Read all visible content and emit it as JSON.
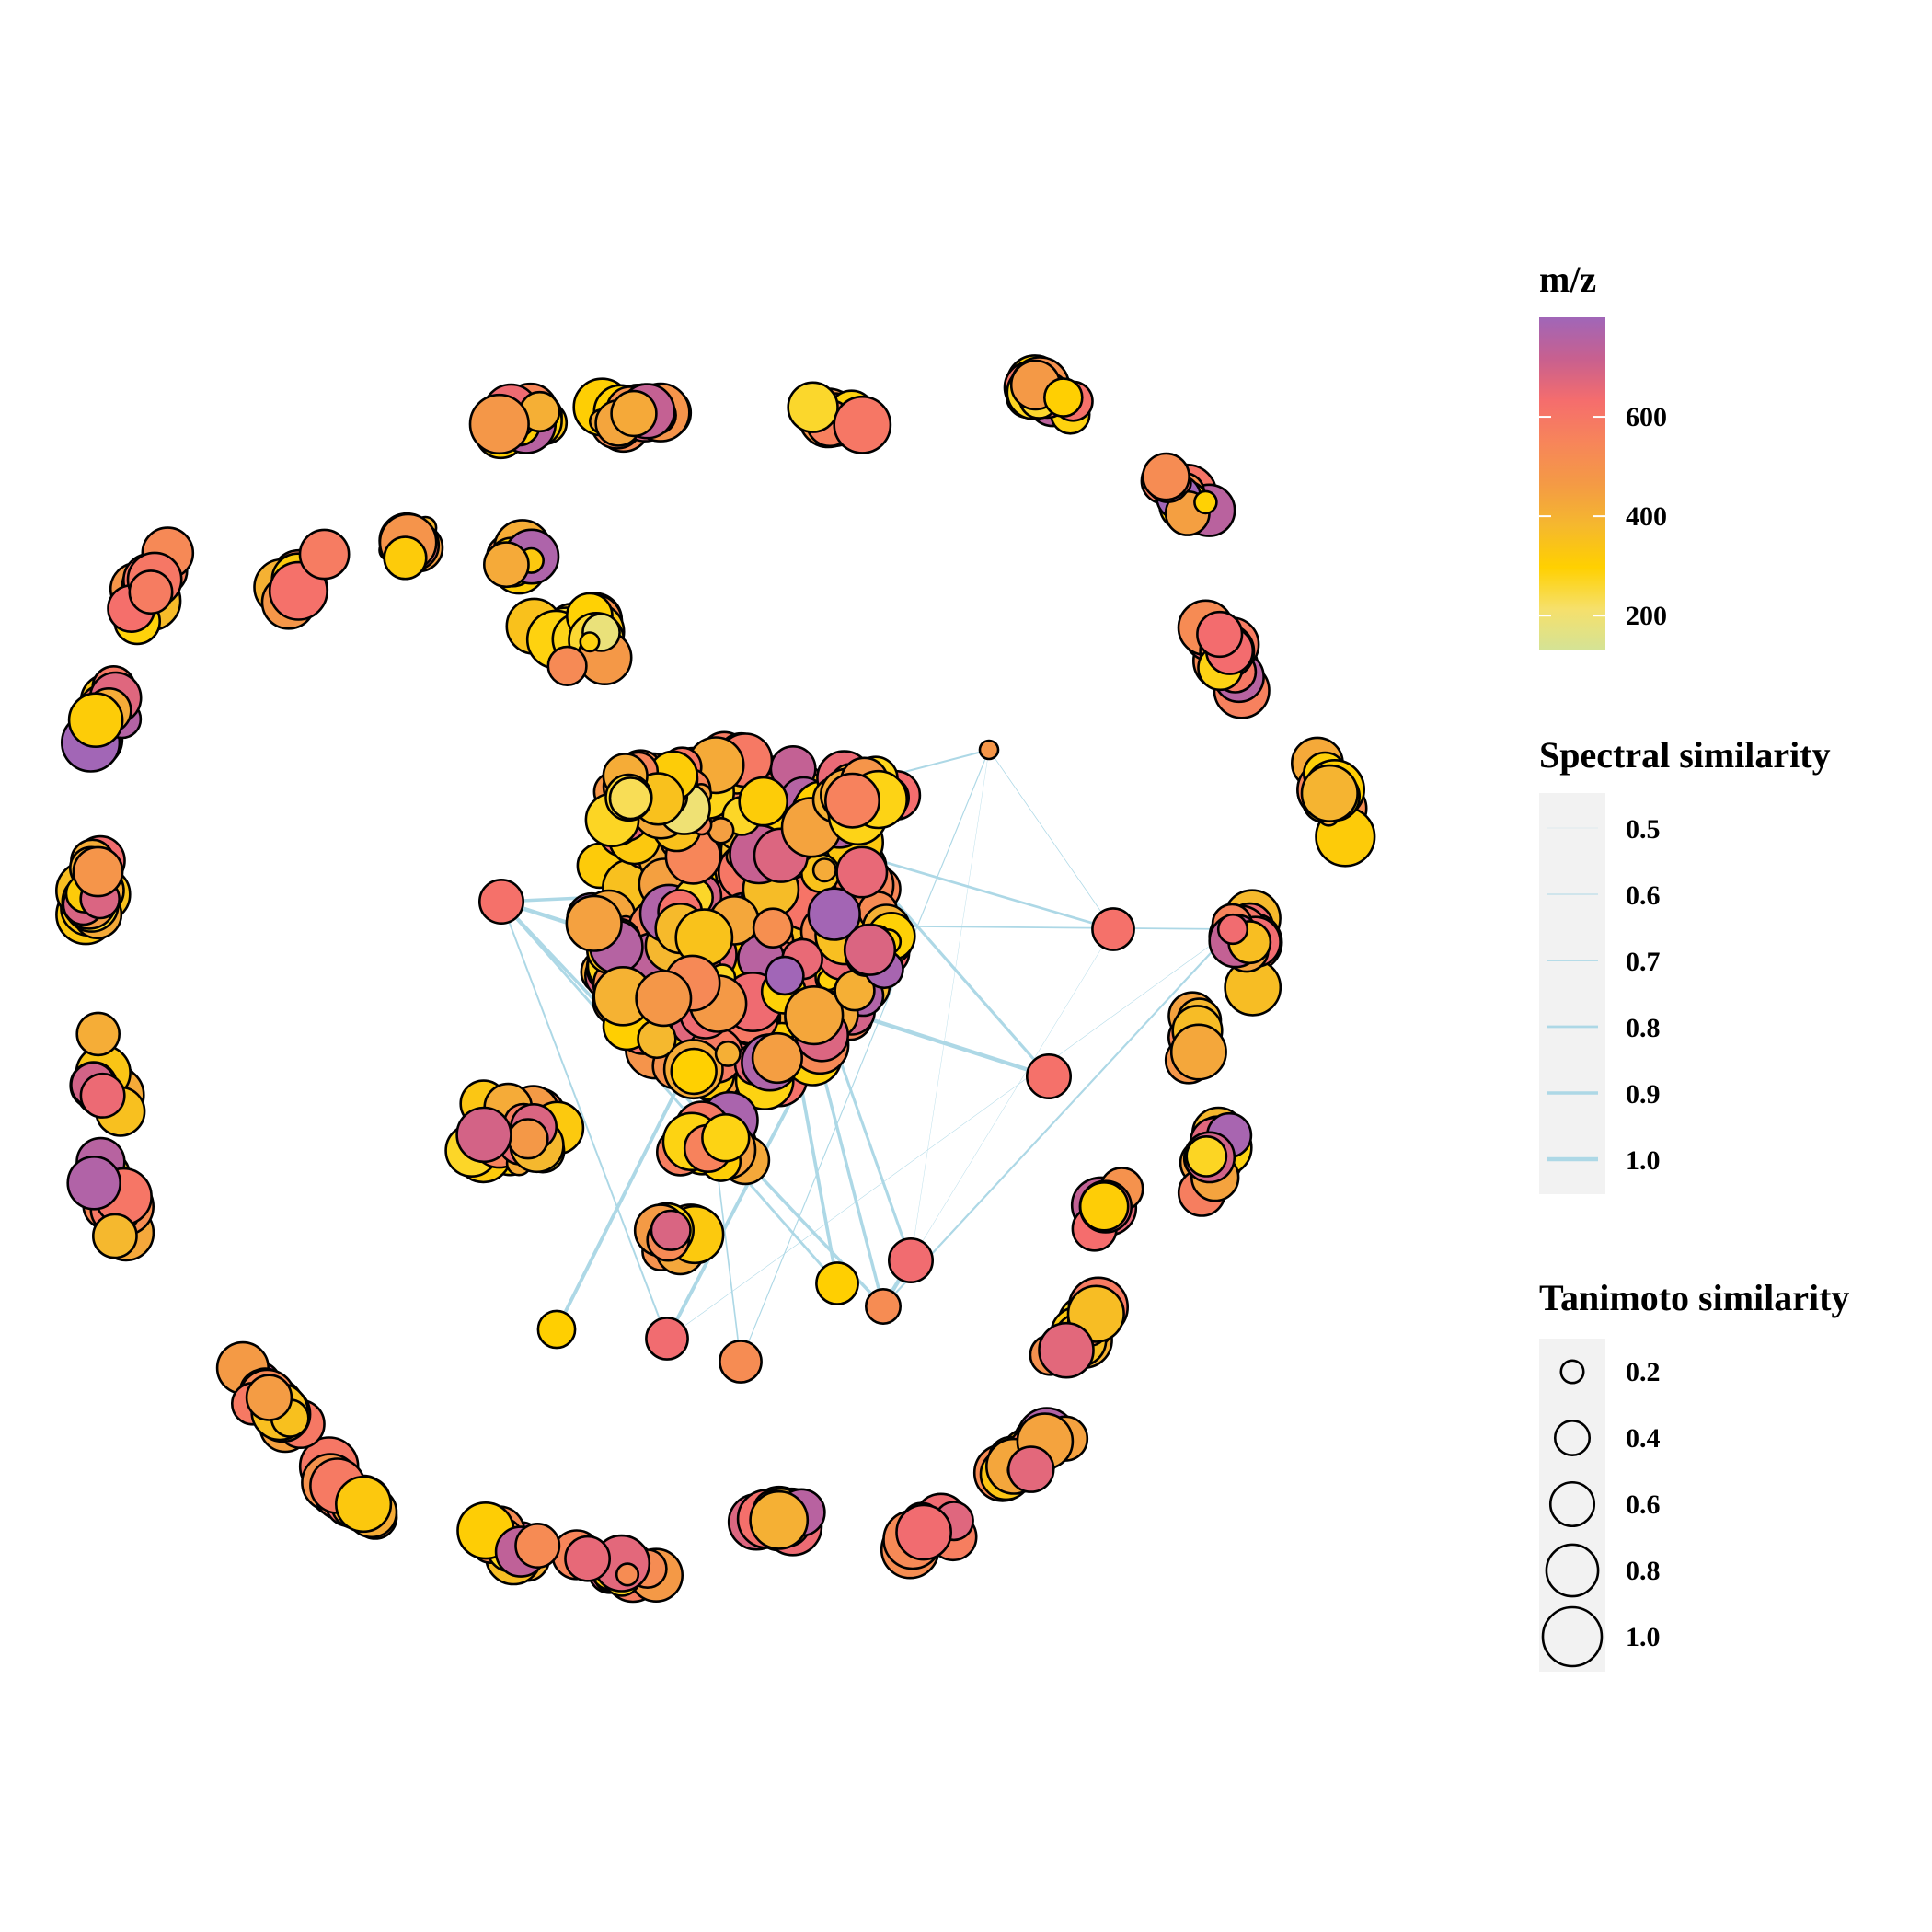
{
  "chart_data": {
    "type": "network",
    "layout": "ring of peripheral clusters surrounding a dense central cluster",
    "background": "#ffffff",
    "node_outline": "#000000",
    "edge_color": "#add8e6",
    "legend_placement": "right",
    "legends": {
      "color": {
        "title": "m/z",
        "breaks": [
          200,
          400,
          600
        ],
        "labels": [
          "200",
          "400",
          "600"
        ],
        "range": [
          130,
          800
        ],
        "colors": [
          "#d4e396",
          "#f6e06b",
          "#ffd000",
          "#f5b82e",
          "#f49a45",
          "#f7855a",
          "#f56d6d",
          "#c8608f",
          "#a066b8"
        ]
      },
      "edge_width": {
        "title": "Spectral similarity",
        "breaks": [
          0.5,
          0.6,
          0.7,
          0.8,
          0.9,
          1.0
        ],
        "labels": [
          "0.5",
          "0.6",
          "0.7",
          "0.8",
          "0.9",
          "1.0"
        ]
      },
      "node_size": {
        "title": "Tanimoto similarity",
        "breaks": [
          0.2,
          0.4,
          0.6,
          0.8,
          1.0
        ],
        "labels": [
          "0.2",
          "0.4",
          "0.6",
          "0.8",
          "1.0"
        ]
      }
    }
  }
}
